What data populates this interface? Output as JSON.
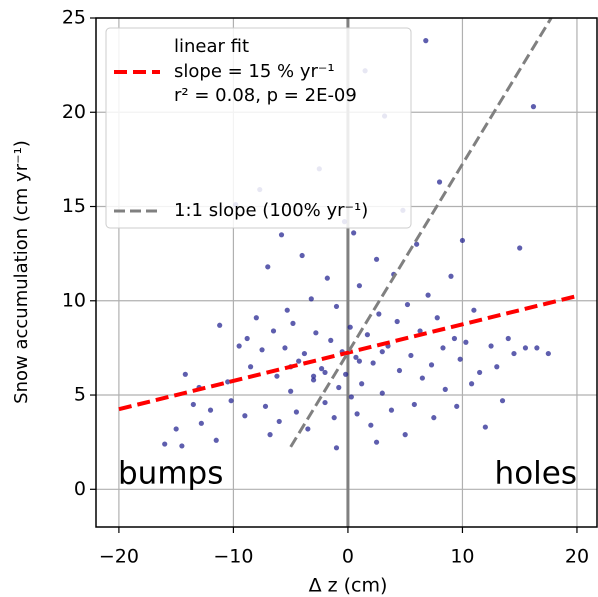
{
  "chart_data": {
    "type": "scatter",
    "x_label": "Δ z (cm)",
    "y_label": "Snow accumulation (cm yr⁻¹)",
    "xlim": [
      -22,
      21.75
    ],
    "ylim": [
      -2,
      25
    ],
    "xticks": [
      {
        "value": -20,
        "label": "−20"
      },
      {
        "value": -10,
        "label": "−10"
      },
      0,
      10,
      20
    ],
    "yticks": [
      0,
      5,
      10,
      15,
      20,
      25
    ],
    "grid": true,
    "color": "#1a1a8c",
    "x": [
      -16,
      -15,
      -14.5,
      -14.2,
      -13.5,
      -12.8,
      -12,
      -11.5,
      -11.2,
      -10.5,
      -10.2,
      -9.8,
      -9.5,
      -9,
      -8.5,
      -8,
      -7.7,
      -7.5,
      -7.2,
      -7,
      -6.8,
      -6.5,
      -6.2,
      -6,
      -5.8,
      -5.5,
      -5.3,
      -5,
      -4.8,
      -4.5,
      -4.3,
      -4,
      -3.8,
      -3.5,
      -3.2,
      -3,
      -2.8,
      -2.5,
      -2.3,
      -2,
      -1.8,
      -1.5,
      -1.2,
      -1,
      -0.8,
      -0.5,
      -0.3,
      -0.2,
      0.2,
      0.3,
      0.5,
      0.7,
      1,
      1.2,
      1.5,
      1.7,
      2,
      2.2,
      2.5,
      2.7,
      3,
      3.2,
      3.5,
      3.8,
      4,
      4.3,
      4.5,
      4.8,
      5,
      5.2,
      5.5,
      5.8,
      6,
      6.3,
      6.5,
      6.8,
      7,
      7.3,
      7.5,
      7.8,
      8,
      8.3,
      8.5,
      9,
      9.3,
      9.5,
      9.8,
      10,
      10.3,
      10.8,
      11,
      11.5,
      12,
      12.5,
      13,
      13.5,
      14,
      14.5,
      15,
      15.5,
      16.2,
      16.5,
      17.5,
      -13,
      -8.8,
      -1,
      2.5,
      0.8,
      -2,
      1,
      3,
      -3,
      -5
    ],
    "y": [
      2.4,
      3.2,
      2.3,
      6.1,
      4.5,
      3.5,
      4.2,
      2.6,
      8.7,
      5.7,
      4.7,
      15.1,
      7.6,
      3.9,
      6.5,
      9.1,
      15.9,
      7.4,
      4.4,
      11.8,
      2.9,
      8.4,
      6,
      3.6,
      13.5,
      7.5,
      9.5,
      5.2,
      8.8,
      4.1,
      6.8,
      12.4,
      7.2,
      3.2,
      10.1,
      5.8,
      8.3,
      17,
      6.4,
      4.6,
      11.2,
      7.9,
      3.8,
      9.7,
      5.4,
      7.3,
      14.2,
      6.1,
      8.6,
      4.9,
      13.6,
      7,
      10.8,
      5.6,
      22.2,
      8.2,
      3.4,
      6.7,
      12.2,
      9.3,
      5.1,
      19.8,
      7.6,
      4.2,
      11.4,
      8.9,
      6.3,
      14.8,
      2.9,
      9.8,
      7.1,
      4.5,
      13,
      8.4,
      5.9,
      23.8,
      10.3,
      6.6,
      3.8,
      9.1,
      16.3,
      7.5,
      5.3,
      11.3,
      8,
      4.4,
      6.9,
      13.2,
      7.8,
      5.6,
      9.5,
      6.2,
      3.3,
      7.6,
      6.5,
      4.7,
      8,
      7.2,
      12.8,
      7.5,
      20.3,
      7.5,
      7.2,
      5.4,
      8,
      2.2,
      2.5,
      4,
      6.2,
      6.8,
      7.3,
      6,
      6.5
    ],
    "lines": [
      {
        "name": "slope = 15 % yr⁻¹",
        "title": "linear fit",
        "extra": "r² = 0.08, p = 2E-09",
        "color": "#ff0000",
        "x": [
          -20,
          20
        ],
        "y": [
          4.25,
          10.25
        ]
      },
      {
        "name": "1:1 slope (100% yr⁻¹)",
        "color": "#808080",
        "x": [
          -5,
          17.75
        ],
        "y": [
          2.25,
          25
        ]
      }
    ],
    "annotations": [
      "bumps",
      "holes"
    ]
  }
}
